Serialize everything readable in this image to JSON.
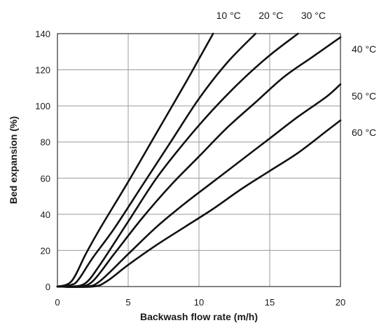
{
  "chart_data": {
    "type": "line",
    "title": "",
    "xlabel": "Backwash flow rate (m/h)",
    "ylabel": "Bed expansion (%)",
    "xlim": [
      0,
      20
    ],
    "ylim": [
      0,
      140
    ],
    "xticks": [
      0,
      5,
      10,
      15,
      20
    ],
    "yticks": [
      0,
      20,
      40,
      60,
      80,
      100,
      120,
      140
    ],
    "grid": true,
    "series": [
      {
        "name": "10 °C",
        "label_anchor": "top",
        "points": [
          [
            0,
            0
          ],
          [
            1,
            3
          ],
          [
            2,
            18
          ],
          [
            3,
            32
          ],
          [
            5,
            58
          ],
          [
            7,
            85
          ],
          [
            9,
            112
          ],
          [
            10,
            126
          ],
          [
            11,
            140
          ]
        ]
      },
      {
        "name": "20 °C",
        "label_anchor": "top",
        "points": [
          [
            0,
            0
          ],
          [
            1,
            1
          ],
          [
            1.5,
            4
          ],
          [
            2.5,
            16
          ],
          [
            4,
            32
          ],
          [
            6,
            56
          ],
          [
            8,
            80
          ],
          [
            10,
            104
          ],
          [
            12,
            124
          ],
          [
            14,
            140
          ]
        ]
      },
      {
        "name": "30 °C",
        "label_anchor": "top",
        "points": [
          [
            0,
            0
          ],
          [
            1,
            0
          ],
          [
            2,
            2
          ],
          [
            3,
            12
          ],
          [
            5,
            36
          ],
          [
            7,
            60
          ],
          [
            9,
            80
          ],
          [
            11,
            98
          ],
          [
            13,
            114
          ],
          [
            15,
            128
          ],
          [
            17,
            140
          ]
        ]
      },
      {
        "name": "40 °C",
        "label_anchor": "right",
        "points": [
          [
            0,
            0
          ],
          [
            1.5,
            0
          ],
          [
            2.5,
            3
          ],
          [
            4,
            18
          ],
          [
            6,
            38
          ],
          [
            8,
            56
          ],
          [
            10,
            72
          ],
          [
            12,
            88
          ],
          [
            14,
            102
          ],
          [
            16,
            116
          ],
          [
            18,
            127
          ],
          [
            20,
            138
          ]
        ]
      },
      {
        "name": "50 °C",
        "label_anchor": "right",
        "points": [
          [
            0,
            0
          ],
          [
            2,
            0
          ],
          [
            3,
            3
          ],
          [
            5,
            18
          ],
          [
            7,
            33
          ],
          [
            9,
            46
          ],
          [
            11,
            58
          ],
          [
            13,
            70
          ],
          [
            15,
            82
          ],
          [
            17,
            94
          ],
          [
            19,
            105
          ],
          [
            20,
            112
          ]
        ]
      },
      {
        "name": "60 °C",
        "label_anchor": "right",
        "points": [
          [
            0,
            0
          ],
          [
            2.5,
            0
          ],
          [
            3.5,
            3
          ],
          [
            5,
            12
          ],
          [
            7,
            23
          ],
          [
            9,
            33
          ],
          [
            11,
            43
          ],
          [
            13,
            54
          ],
          [
            15,
            64
          ],
          [
            17,
            74
          ],
          [
            19,
            86
          ],
          [
            20,
            92
          ]
        ]
      }
    ]
  }
}
